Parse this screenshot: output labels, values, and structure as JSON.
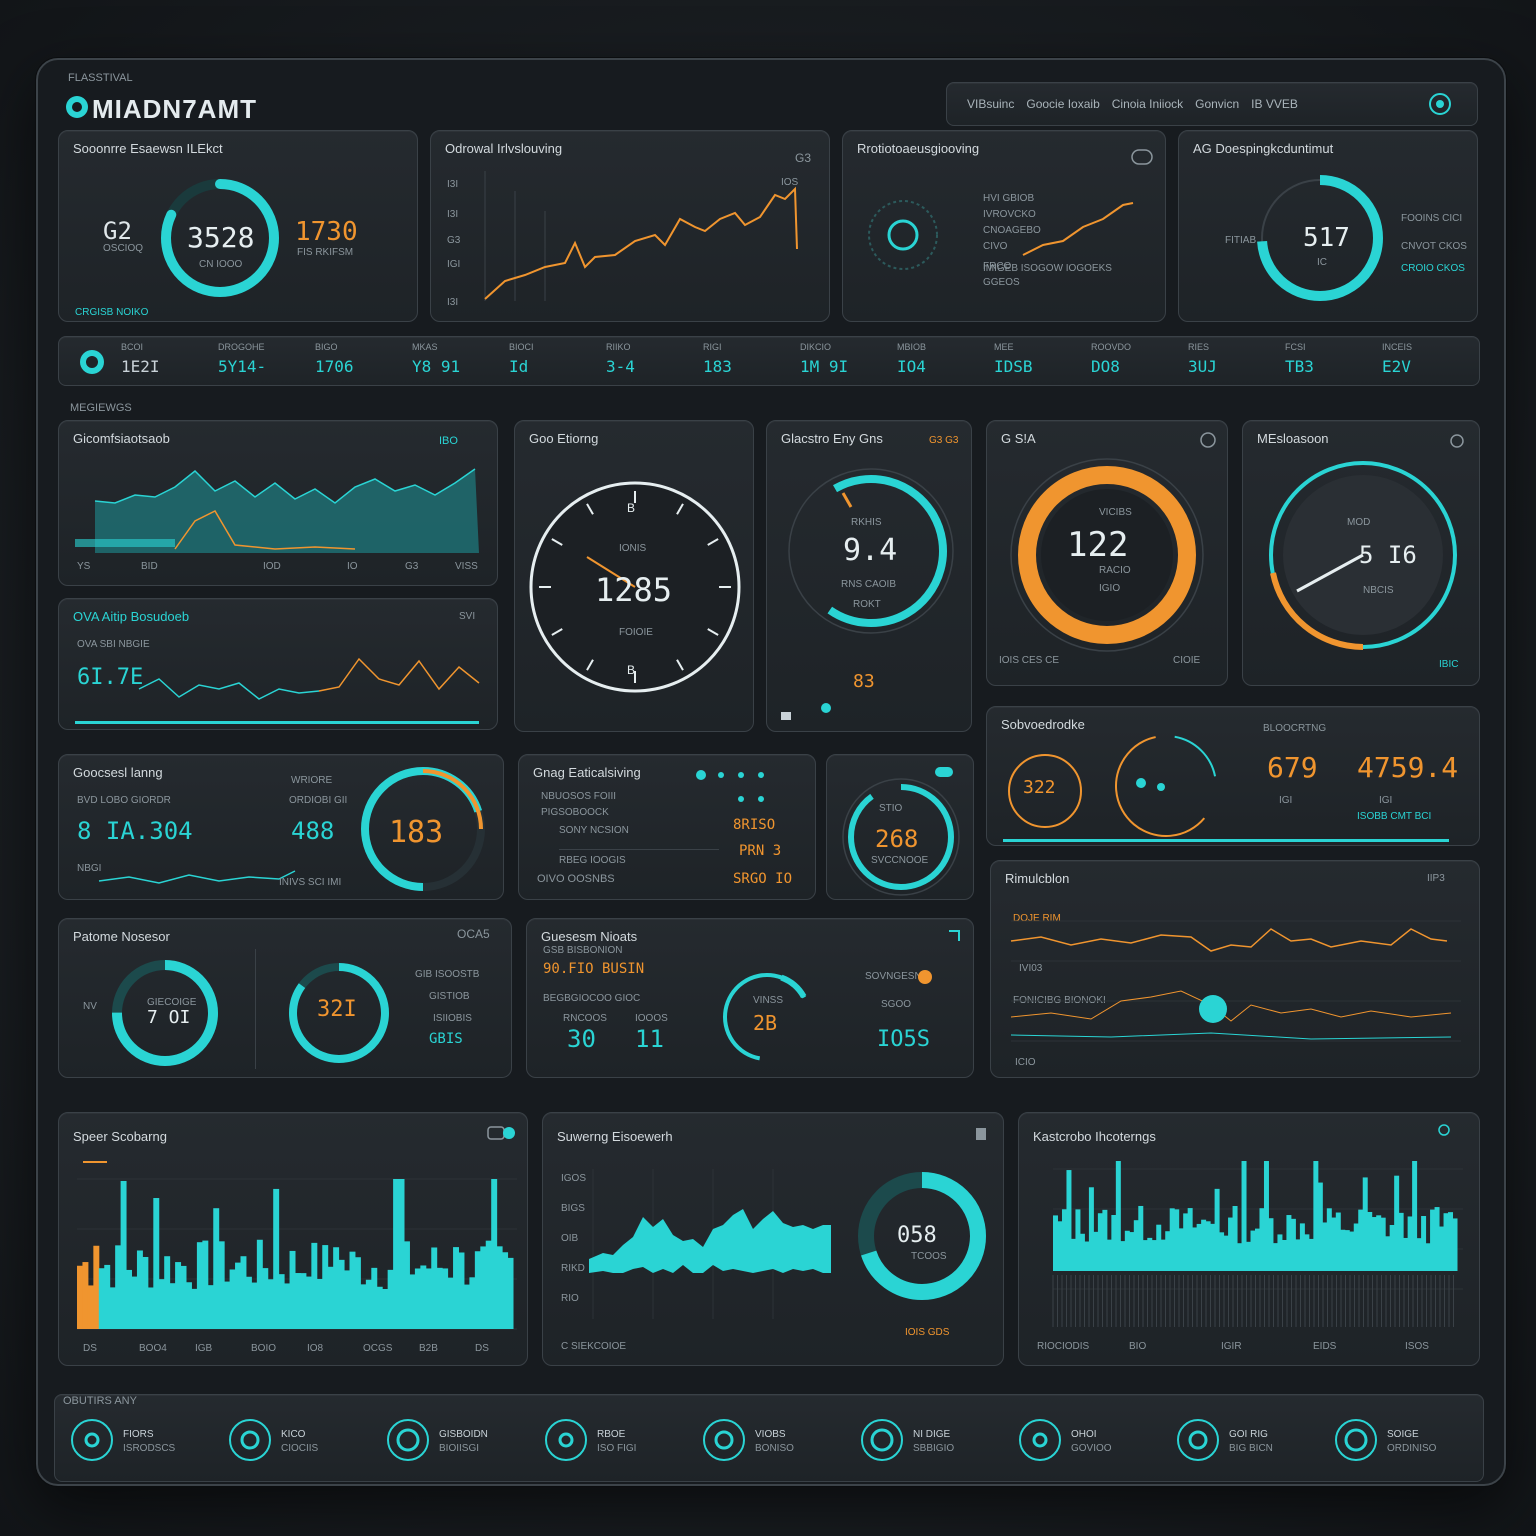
{
  "app": {
    "brand_top": "FLASSTIVAL",
    "title": "MIADN7AMT",
    "nav": [
      "VIBsuinc",
      "Goocie Ioxaib",
      "Cinoia Iniiock",
      "Gonvicn",
      "IB VVEB"
    ]
  },
  "colors": {
    "cyan": "#2ad4d4",
    "orange": "#f0952f",
    "panel": "#22272b",
    "bg": "#171b1f"
  },
  "top": {
    "p1": {
      "title": "Sooonrre Esaewsn ILEkct",
      "left_val": "G2",
      "left_sub": "OSCIOQ",
      "gauge_val": "3528",
      "gauge_sub": "CN IOOO",
      "right_val": "1730",
      "right_sub": "FIS RKIFSM",
      "footer": "CRGISB NOIKO",
      "level": 0.82
    },
    "p2": {
      "title": "Odrowal Irlvslouving",
      "badge": "G3",
      "y_ticks": [
        "I3I",
        "I3I",
        "G3",
        "IGI",
        "I3I"
      ],
      "tag": "IOS"
    },
    "p3": {
      "title": "Rrotiotoaeusgiooving",
      "lines": [
        "HVI GBIOB",
        "IVROVCKO",
        "CNOAGEBO",
        "CIVO",
        "FRCO"
      ],
      "bottom": "IMIGEB ISOGOW IOGOEKS",
      "sub": "GGEOS"
    },
    "p4": {
      "title": "AG Doespingkcduntimut",
      "gauge_val": "517",
      "gauge_sub": "IC",
      "left": "FITIAB",
      "right": [
        "FOOINS CICI",
        "CNVOT CKOS",
        "CROIO CKOS"
      ],
      "level": 0.74
    }
  },
  "statbar": {
    "items": [
      {
        "label": "BCOI",
        "value": "1E2I",
        "color": "#c9d2d8"
      },
      {
        "label": "DROGOHE",
        "value": "5Y14-",
        "color": "#2ad4d4"
      },
      {
        "label": "BIGO",
        "value": "1706",
        "color": "#2ad4d4"
      },
      {
        "label": "MKAS",
        "value": "Y8 91",
        "color": "#2ad4d4"
      },
      {
        "label": "BIOCI",
        "value": "Id",
        "color": "#2ad4d4"
      },
      {
        "label": "RIIKO",
        "value": "3-4",
        "color": "#2ad4d4"
      },
      {
        "label": "RIGI",
        "value": "183",
        "color": "#2ad4d4"
      },
      {
        "label": "DIKCIO",
        "value": "1M 9I",
        "color": "#2ad4d4"
      },
      {
        "label": "MBIOB",
        "value": "IO4",
        "color": "#2ad4d4"
      },
      {
        "label": "MEE",
        "value": "IDSB",
        "color": "#2ad4d4"
      },
      {
        "label": "ROOVDO",
        "value": "DO8",
        "color": "#2ad4d4"
      },
      {
        "label": "RIES",
        "value": "3UJ",
        "color": "#2ad4d4"
      },
      {
        "label": "FCSI",
        "value": "TB3",
        "color": "#2ad4d4"
      },
      {
        "label": "INCEIS",
        "value": "E2V",
        "color": "#2ad4d4"
      }
    ]
  },
  "section_label": "MEGIEWGS",
  "mid": {
    "area": {
      "title": "Gicomfsiaotsaob",
      "badge": "IBO",
      "axis": [
        "YS",
        "BID",
        "IOD",
        "IO",
        "G3",
        "VISS"
      ]
    },
    "line": {
      "title": "OVA Aitip Bosudoeb",
      "badge": "SVI",
      "value": "6I.7E",
      "sub": "OVA SBI NBGIE"
    },
    "clock": {
      "title": "Goo Etiorng",
      "value": "1285",
      "top_label": "IONIS",
      "sub": "FOIOIE",
      "marks": [
        "B",
        "B"
      ]
    },
    "gauge94": {
      "title": "Glacstro Eny Gns",
      "badge": "G3 G3",
      "value": "9.4",
      "sub": "RKHIS",
      "sub2": "RNS CAOIB",
      "sub3": "ROKT",
      "bottom": "83",
      "level": 0.68
    },
    "ring122": {
      "title": "G S!A",
      "value": "122",
      "top_label": "VICIBS",
      "sub": "RACIO",
      "sub2": "IGIO",
      "footer_l": "IOIS CES CE",
      "footer_r": "CIOIE",
      "level": 1.0
    },
    "needle": {
      "title": "MEsloasoon",
      "value": "5 I6",
      "top_label": "MOD",
      "sub": "NBCIS",
      "footer": "IBIC",
      "level": 0.62
    }
  },
  "row3": {
    "metric": {
      "title": "Goocsesl lanng",
      "sub": "BVD LOBO GIORDR",
      "value1": "8 IA.304",
      "value2": "488",
      "gauge_val": "183",
      "right_title": "WRIORE",
      "right_sub": "ORDIOBI GII",
      "foot": "INIVS SCI IMI",
      "left_foot": "NBGI",
      "level": 0.7
    },
    "list": {
      "title": "Gnag Eaticalsiving",
      "rows": [
        "NBUOSOS FOIII",
        "PIGSOBOOCK",
        "SONY NCSION",
        "RBEG IOOGIS"
      ],
      "values": [
        "8RISO",
        "PRN 3",
        "SRGO IO"
      ],
      "bottom": "OIVO OOSNBS"
    },
    "ring268": {
      "value": "268",
      "sub": "STIO",
      "sub2": "SVCCNOOE",
      "level": 0.9
    },
    "stats": {
      "title": "Sobvoedrodke",
      "ring_val": "322",
      "v1": "679",
      "v2": "4759.4",
      "label1": "BLOOCRTNG",
      "sub1": "IGI",
      "sub2": "IGI",
      "foot": "ISOBB CMT BCI"
    }
  },
  "row4": {
    "donuts": {
      "title": "Patome Nosesor",
      "badge": "OCA5",
      "d1": "7 OI",
      "d1_label": "GIECOIGE",
      "d2": "32I",
      "side": [
        "GIB ISOOSTB",
        "GISTIOB",
        "ISIIOBIS",
        "GBIS"
      ],
      "left": "NV",
      "level1": 0.75,
      "level2": 0.85
    },
    "mixed": {
      "title": "Guesesm Nioats",
      "sub": "GSB BISBONION",
      "v1": "90.FIO BUSIN",
      "v2": "30",
      "v3": "11",
      "ring": "2B",
      "ring_label": "VINSS",
      "right_label": "SOVNGESN",
      "right_sub": "SGOO",
      "right_val": "IO5S",
      "sub2": "BEGBGIOCOO GIOC",
      "c1": "RNCOOS",
      "c2": "IOOOS"
    },
    "lines": {
      "title": "Rimulcblon",
      "badge": "IIP3",
      "l1": "DOJE RIM",
      "l2": "IVI03",
      "l3": "FONICIBG BIONOKI",
      "foot": "ICIO"
    }
  },
  "row5": {
    "b1": {
      "title": "Speer Scobarng",
      "axis": [
        "DS",
        "BOO4",
        "IGB",
        "BOIO",
        "IO8",
        "OCGS",
        "B2B",
        "DS"
      ]
    },
    "b2": {
      "title": "Suwerng Eisoewerh",
      "ring": "058",
      "ring_sub": "TCOOS",
      "axis": [
        "IGOS",
        "BIGS",
        "OIB",
        "RIKD",
        "RIO"
      ],
      "foot": "C SIEKCOIOE",
      "legend": "IOIS GDS",
      "level": 0.7
    },
    "b3": {
      "title": "Kastcrobo Ihcoterngs",
      "axis": [
        "RIOCIODIS",
        "BIO",
        "IGIR",
        "EIDS",
        "ISOS"
      ]
    }
  },
  "footer": {
    "title": "OBUTIRS ANY",
    "items": [
      {
        "label": "FIORS",
        "sub": "ISRODSCS"
      },
      {
        "label": "KICO",
        "sub": "CIOCIIS"
      },
      {
        "label": "GISBOIDN",
        "sub": "BIOIISGI"
      },
      {
        "label": "RBOE",
        "sub": "ISO FIGI"
      },
      {
        "label": "VIOBS",
        "sub": "BONISO"
      },
      {
        "label": "NI DIGE",
        "sub": "SBBIGIO"
      },
      {
        "label": "OHOI",
        "sub": "GOVIOO"
      },
      {
        "label": "GOI RIG",
        "sub": "BIG BICN"
      },
      {
        "label": "SOIGE",
        "sub": "ORDINISO"
      }
    ]
  }
}
